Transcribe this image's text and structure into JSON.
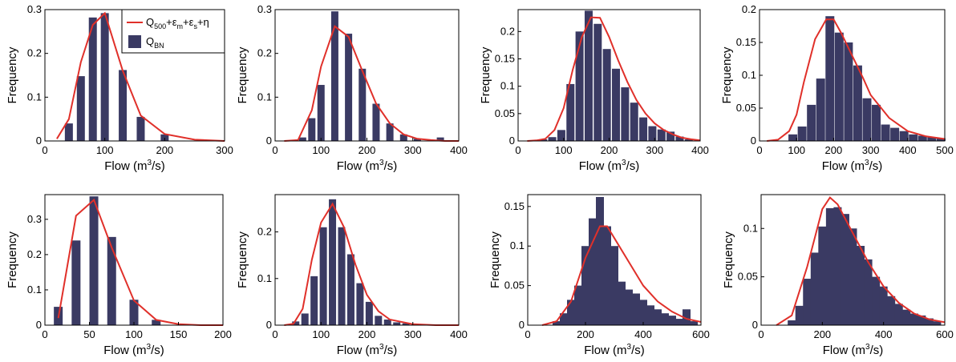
{
  "colors": {
    "bar": "#3a3a63",
    "line": "#e0302a",
    "axis": "#000000"
  },
  "legend": {
    "line_label": "Q",
    "line_sub": "500",
    "line_rest": "+ε",
    "eps_m_sub": "m",
    "plus_eps": "+ε",
    "eps_s_sub": "s",
    "eta": "+η",
    "bar_label": "Q",
    "bar_sub": "BN",
    "placement": "top-right of first panel"
  },
  "chart_data": [
    {
      "type": "bar",
      "xlabel": "Flow (m",
      "xlabel_sup": "3",
      "xlabel_end": "/s)",
      "ylabel": "Frequency",
      "xlim": [
        0,
        300
      ],
      "ylim": [
        0,
        0.3
      ],
      "xticks": [
        "0",
        "100",
        "200",
        "300"
      ],
      "xtick_values": [
        0,
        100,
        200,
        300
      ],
      "yticks": [
        "0",
        "0.1",
        "0.2",
        "0.3"
      ],
      "ytick_values": [
        0,
        0.1,
        0.2,
        0.3
      ],
      "bar_width": 10,
      "bars": {
        "x": [
          40,
          60,
          80,
          100,
          130,
          160,
          200
        ],
        "values": [
          0.04,
          0.148,
          0.282,
          0.292,
          0.162,
          0.055,
          0.015
        ]
      },
      "series": [
        {
          "name": "Q500+εm+εs+η",
          "x": [
            20,
            40,
            60,
            80,
            100,
            130,
            160,
            200,
            250,
            300
          ],
          "values": [
            0.005,
            0.05,
            0.18,
            0.265,
            0.292,
            0.16,
            0.058,
            0.016,
            0.003,
            0.0
          ]
        }
      ]
    },
    {
      "type": "bar",
      "xlabel": "Flow (m",
      "xlabel_sup": "3",
      "xlabel_end": "/s)",
      "ylabel": "Frequency",
      "xlim": [
        0,
        400
      ],
      "ylim": [
        0,
        0.3
      ],
      "xticks": [
        "0",
        "100",
        "200",
        "300",
        "400"
      ],
      "xtick_values": [
        0,
        100,
        200,
        300,
        400
      ],
      "yticks": [
        "0",
        "0.1",
        "0.2",
        "0.3"
      ],
      "ytick_values": [
        0,
        0.1,
        0.2,
        0.3
      ],
      "bar_width": 9,
      "bars": {
        "x": [
          60,
          80,
          100,
          130,
          160,
          190,
          220,
          250,
          280,
          310,
          340,
          360
        ],
        "values": [
          0.008,
          0.052,
          0.128,
          0.296,
          0.245,
          0.165,
          0.085,
          0.04,
          0.015,
          0.005,
          0.002,
          0.008
        ]
      },
      "series": [
        {
          "name": "Q500+εm+εs+η",
          "x": [
            20,
            50,
            80,
            100,
            130,
            160,
            190,
            220,
            250,
            280,
            310,
            340,
            370,
            400
          ],
          "values": [
            0.0,
            0.002,
            0.07,
            0.17,
            0.262,
            0.238,
            0.16,
            0.085,
            0.04,
            0.015,
            0.005,
            0.002,
            0.0,
            0.0
          ]
        }
      ]
    },
    {
      "type": "bar",
      "xlabel": "Flow (m",
      "xlabel_sup": "3",
      "xlabel_end": "/s)",
      "ylabel": "Frequency",
      "xlim": [
        0,
        400
      ],
      "ylim": [
        0,
        0.24
      ],
      "xticks": [
        "0",
        "100",
        "200",
        "300",
        "400"
      ],
      "xtick_values": [
        0,
        100,
        200,
        300,
        400
      ],
      "yticks": [
        "0",
        "0.05",
        "0.1",
        "0.15",
        "0.2"
      ],
      "ytick_values": [
        0,
        0.05,
        0.1,
        0.15,
        0.2
      ],
      "bar_width": 10,
      "bars": {
        "x": [
          55,
          75,
          95,
          115,
          135,
          155,
          175,
          195,
          215,
          235,
          255,
          275,
          295,
          315,
          335,
          355,
          375
        ],
        "values": [
          0.003,
          0.007,
          0.02,
          0.104,
          0.2,
          0.238,
          0.214,
          0.168,
          0.132,
          0.098,
          0.07,
          0.043,
          0.027,
          0.021,
          0.017,
          0.008,
          0.003
        ]
      },
      "series": [
        {
          "name": "Q500+εm+εs+η",
          "x": [
            20,
            40,
            60,
            80,
            100,
            120,
            140,
            160,
            180,
            200,
            220,
            240,
            260,
            280,
            300,
            320,
            340,
            360,
            380,
            400
          ],
          "values": [
            0.0,
            0.001,
            0.004,
            0.02,
            0.06,
            0.13,
            0.19,
            0.226,
            0.225,
            0.19,
            0.147,
            0.108,
            0.075,
            0.05,
            0.032,
            0.02,
            0.012,
            0.006,
            0.003,
            0.001
          ]
        }
      ]
    },
    {
      "type": "bar",
      "xlabel": "Flow (m",
      "xlabel_sup": "3",
      "xlabel_end": "/s)",
      "ylabel": "Frequency",
      "xlim": [
        0,
        500
      ],
      "ylim": [
        0,
        0.2
      ],
      "xticks": [
        "0",
        "100",
        "200",
        "300",
        "400",
        "500"
      ],
      "xtick_values": [
        0,
        100,
        200,
        300,
        400,
        500
      ],
      "yticks": [
        "0",
        "0.05",
        "0.1",
        "0.15",
        "0.2"
      ],
      "ytick_values": [
        0,
        0.05,
        0.1,
        0.15,
        0.2
      ],
      "bar_width": 11,
      "bars": {
        "x": [
          90,
          115,
          140,
          165,
          190,
          215,
          240,
          265,
          290,
          315,
          340,
          365,
          390,
          415,
          440,
          465,
          490
        ],
        "values": [
          0.01,
          0.022,
          0.055,
          0.095,
          0.19,
          0.165,
          0.15,
          0.115,
          0.065,
          0.055,
          0.025,
          0.02,
          0.015,
          0.01,
          0.008,
          0.006,
          0.004
        ]
      },
      "series": [
        {
          "name": "Q500+εm+εs+η",
          "x": [
            20,
            50,
            80,
            100,
            120,
            150,
            180,
            200,
            220,
            250,
            280,
            300,
            350,
            400,
            450,
            500
          ],
          "values": [
            0.0,
            0.002,
            0.015,
            0.04,
            0.09,
            0.155,
            0.185,
            0.185,
            0.165,
            0.13,
            0.095,
            0.07,
            0.035,
            0.015,
            0.007,
            0.003
          ]
        }
      ]
    },
    {
      "type": "bar",
      "xlabel": "Flow (m",
      "xlabel_sup": "3",
      "xlabel_end": "/s)",
      "ylabel": "Frequency",
      "xlim": [
        0,
        200
      ],
      "ylim": [
        0,
        0.37
      ],
      "xticks": [
        "0",
        "50",
        "100",
        "150",
        "200"
      ],
      "xtick_values": [
        0,
        50,
        100,
        150,
        200
      ],
      "yticks": [
        "0",
        "0.1",
        "0.2",
        "0.3"
      ],
      "ytick_values": [
        0,
        0.1,
        0.2,
        0.3
      ],
      "bar_width": 11,
      "bars": {
        "x": [
          15,
          35,
          55,
          75,
          100,
          125
        ],
        "values": [
          0.052,
          0.24,
          0.365,
          0.25,
          0.072,
          0.015
        ]
      },
      "series": [
        {
          "name": "Q500+εm+εs+η",
          "x": [
            15,
            35,
            55,
            75,
            100,
            125,
            150,
            175,
            200
          ],
          "values": [
            0.02,
            0.31,
            0.355,
            0.22,
            0.07,
            0.015,
            0.003,
            0.0,
            0.0
          ]
        }
      ]
    },
    {
      "type": "bar",
      "xlabel": "Flow (m",
      "xlabel_sup": "3",
      "xlabel_end": "/s)",
      "ylabel": "Frequency",
      "xlim": [
        0,
        400
      ],
      "ylim": [
        0,
        0.28
      ],
      "xticks": [
        "0",
        "100",
        "200",
        "300",
        "400"
      ],
      "xtick_values": [
        0,
        100,
        200,
        300,
        400
      ],
      "yticks": [
        "0",
        "0.1",
        "0.2"
      ],
      "ytick_values": [
        0,
        0.1,
        0.2
      ],
      "bar_width": 9,
      "bars": {
        "x": [
          45,
          65,
          85,
          105,
          125,
          145,
          165,
          185,
          205,
          225,
          245,
          265,
          285,
          305,
          325
        ],
        "values": [
          0.008,
          0.025,
          0.105,
          0.21,
          0.27,
          0.21,
          0.152,
          0.09,
          0.05,
          0.02,
          0.012,
          0.006,
          0.004,
          0.002,
          0.001
        ]
      },
      "series": [
        {
          "name": "Q500+εm+εs+η",
          "x": [
            20,
            40,
            60,
            80,
            100,
            125,
            150,
            175,
            200,
            225,
            250,
            300,
            350,
            400
          ],
          "values": [
            0.0,
            0.003,
            0.035,
            0.14,
            0.22,
            0.26,
            0.21,
            0.13,
            0.065,
            0.03,
            0.012,
            0.002,
            0.0,
            0.0
          ]
        }
      ]
    },
    {
      "type": "bar",
      "xlabel": "Flow (m",
      "xlabel_sup": "3",
      "xlabel_end": "/s)",
      "ylabel": "Frequency",
      "xlim": [
        0,
        600
      ],
      "ylim": [
        0,
        0.165
      ],
      "xticks": [
        "0",
        "200",
        "400",
        "600"
      ],
      "xtick_values": [
        0,
        200,
        400,
        600
      ],
      "yticks": [
        "0",
        "0.05",
        "0.1",
        "0.15"
      ],
      "ytick_values": [
        0,
        0.05,
        0.1,
        0.15
      ],
      "bar_width": 10,
      "bars": {
        "x": [
          100,
          125,
          150,
          175,
          200,
          225,
          250,
          275,
          300,
          325,
          350,
          375,
          400,
          425,
          450,
          475,
          500,
          525,
          550,
          575
        ],
        "values": [
          0.005,
          0.015,
          0.032,
          0.05,
          0.1,
          0.135,
          0.162,
          0.125,
          0.1,
          0.055,
          0.045,
          0.04,
          0.032,
          0.025,
          0.02,
          0.015,
          0.012,
          0.008,
          0.02,
          0.005
        ]
      },
      "series": [
        {
          "name": "Q500+εm+εs+η",
          "x": [
            50,
            100,
            150,
            200,
            250,
            275,
            300,
            350,
            400,
            450,
            500,
            550,
            600
          ],
          "values": [
            0.0,
            0.005,
            0.03,
            0.085,
            0.125,
            0.125,
            0.11,
            0.08,
            0.05,
            0.03,
            0.017,
            0.008,
            0.004
          ]
        }
      ]
    },
    {
      "type": "bar",
      "xlabel": "Flow (m",
      "xlabel_sup": "3",
      "xlabel_end": "/s)",
      "ylabel": "Frequency",
      "xlim": [
        0,
        600
      ],
      "ylim": [
        0,
        0.135
      ],
      "xticks": [
        "0",
        "200",
        "400",
        "600"
      ],
      "xtick_values": [
        0,
        200,
        400,
        600
      ],
      "yticks": [
        "0",
        "0.05",
        "0.1"
      ],
      "ytick_values": [
        0,
        0.05,
        0.1
      ],
      "bar_width": 10,
      "bars": {
        "x": [
          100,
          125,
          150,
          175,
          200,
          225,
          250,
          275,
          300,
          325,
          350,
          375,
          400,
          425,
          450,
          475,
          500,
          525,
          550,
          575
        ],
        "values": [
          0.005,
          0.02,
          0.048,
          0.075,
          0.102,
          0.121,
          0.122,
          0.115,
          0.1,
          0.082,
          0.068,
          0.05,
          0.04,
          0.03,
          0.022,
          0.016,
          0.012,
          0.01,
          0.007,
          0.004
        ]
      },
      "series": [
        {
          "name": "Q500+εm+εs+η",
          "x": [
            50,
            100,
            150,
            200,
            225,
            250,
            300,
            350,
            400,
            450,
            500,
            550,
            600
          ],
          "values": [
            0.0,
            0.01,
            0.06,
            0.12,
            0.132,
            0.125,
            0.095,
            0.065,
            0.04,
            0.023,
            0.012,
            0.006,
            0.003
          ]
        }
      ]
    }
  ]
}
